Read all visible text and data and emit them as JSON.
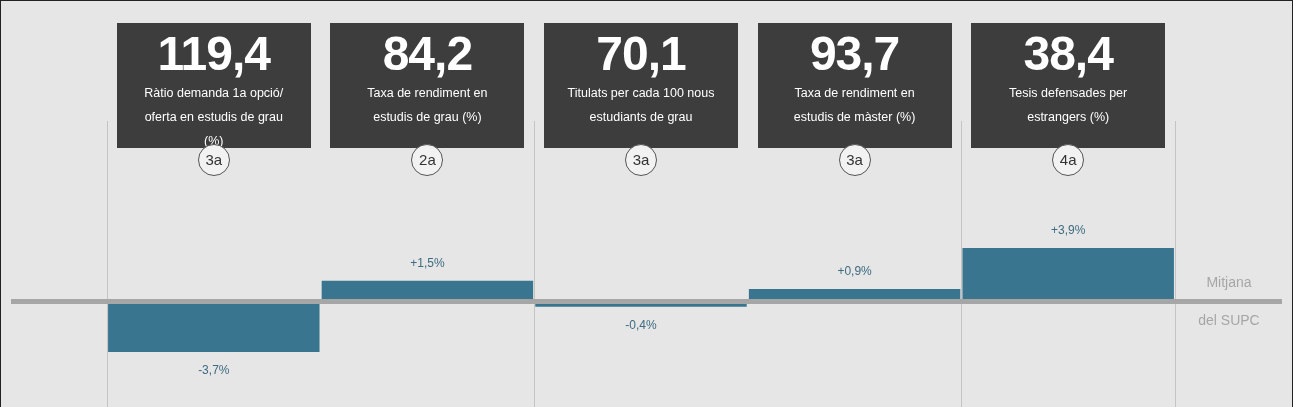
{
  "chart_data": {
    "type": "bar",
    "categories": [
      "Ràtio demanda 1a opció/ oferta en estudis de grau (%)",
      "Taxa de rendiment en estudis de grau (%)",
      "Titulats per cada 100 nous estudiants de grau",
      "Taxa de rendiment en estudis de màster (%)",
      "Tesis defensades per estrangers (%)"
    ],
    "values": [
      -3.7,
      1.5,
      -0.4,
      0.9,
      3.9
    ],
    "color": "#3a758f",
    "value_labels": [
      "-3,7%",
      "+1,5%",
      "-0,4%",
      "+0,9%",
      "+3,9%"
    ],
    "annotations": [
      "119,4",
      "3a",
      "84,2",
      "2a",
      "70,1",
      "3a",
      "93,7",
      "3a",
      "38,4",
      "4a"
    ],
    "ref_lines": [
      {
        "axis": "y",
        "value": 0,
        "label": "Mitjana del SUPC",
        "color": "#a6a6a6"
      }
    ],
    "grid": "x",
    "tick_labels": false
  }
}
